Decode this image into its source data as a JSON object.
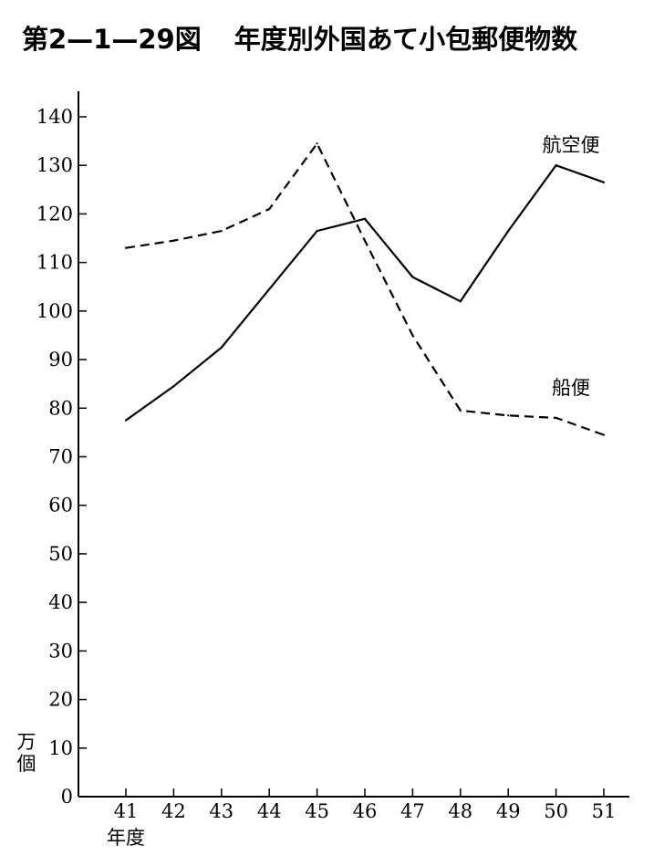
{
  "chart_data": {
    "type": "line",
    "figure_number": "第2—1—29図",
    "title": "年度別外国あて小包郵便物数",
    "xlabel": "年度",
    "ylabel": "万個",
    "categories": [
      "41",
      "42",
      "43",
      "44",
      "45",
      "46",
      "47",
      "48",
      "49",
      "50",
      "51"
    ],
    "ylim": [
      0,
      140
    ],
    "yticks": [
      0,
      10,
      20,
      30,
      40,
      50,
      60,
      70,
      80,
      90,
      100,
      110,
      120,
      130,
      140
    ],
    "grid": false,
    "series": [
      {
        "name": "航空便",
        "style": "solid",
        "values": [
          77.5,
          84.5,
          92.5,
          104.5,
          116.5,
          119,
          107,
          102,
          116.5,
          130,
          126.5
        ]
      },
      {
        "name": "船便",
        "style": "dashed",
        "values": [
          113,
          114.5,
          116.5,
          121,
          134.5,
          114.5,
          95,
          79.5,
          78.5,
          78,
          74.5
        ]
      }
    ]
  }
}
